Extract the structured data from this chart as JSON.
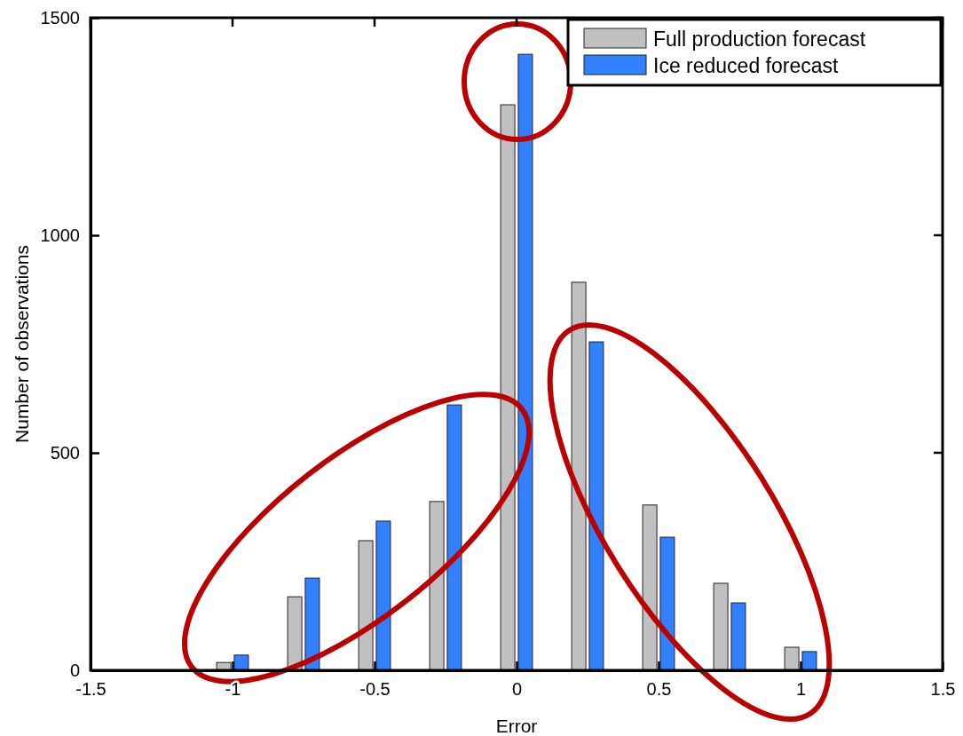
{
  "chart_data": {
    "type": "bar",
    "xlabel": "Error",
    "ylabel": "Number of observations",
    "x": [
      -1,
      -0.75,
      -0.5,
      -0.25,
      0,
      0.25,
      0.5,
      0.75,
      1
    ],
    "series": [
      {
        "name": "Full production forecast",
        "color": "#c0c0c0",
        "values": [
          18,
          169,
          298,
          388,
          1300,
          892,
          380,
          200,
          53
        ]
      },
      {
        "name": "Ice reduced forecast",
        "color": "#3380ff",
        "values": [
          35,
          212,
          343,
          610,
          1416,
          755,
          306,
          155,
          43
        ]
      }
    ],
    "xlim": [
      -1.5,
      1.5
    ],
    "xticks": [
      -1.5,
      -1,
      -0.5,
      0,
      0.5,
      1,
      1.5
    ],
    "ylim": [
      0,
      1500
    ],
    "yticks": [
      0,
      500,
      1000,
      1500
    ],
    "legend": "top right",
    "grid": false
  }
}
